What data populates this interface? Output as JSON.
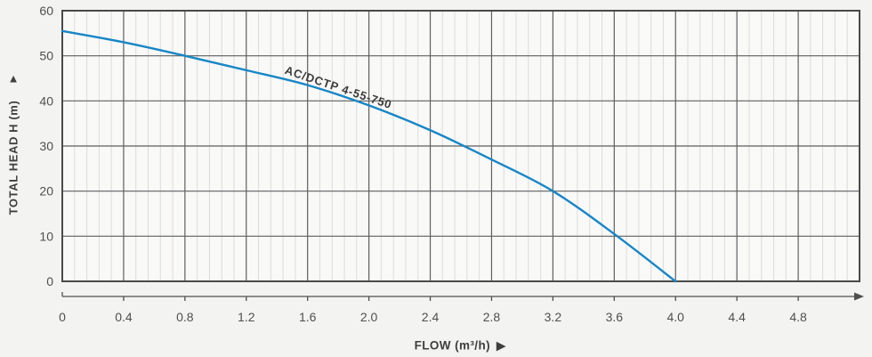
{
  "figure": {
    "y_axis_title": "TOTAL HEAD H (m)",
    "y_axis_arrow": "▲",
    "x_axis_title": "FLOW (m³/h)",
    "x_axis_arrow": "▶"
  },
  "chart_data": {
    "type": "line",
    "title": "",
    "xlabel": "FLOW (m³/h)",
    "ylabel": "TOTAL HEAD H (m)",
    "xlim": [
      0,
      5.2
    ],
    "ylim": [
      0,
      60
    ],
    "x_major_step": 0.4,
    "x_minor_step": 0.08,
    "y_major_step": 10,
    "x_ticks": [
      0,
      0.4,
      0.8,
      1.2,
      1.6,
      2.0,
      2.4,
      2.8,
      3.2,
      3.6,
      4.0,
      4.4,
      4.8
    ],
    "x_tick_labels": [
      "0",
      "0.4",
      "0.8",
      "1.2",
      "1.6",
      "2.0",
      "2.4",
      "2.8",
      "3.2",
      "3.6",
      "4.0",
      "4.4",
      "4.8"
    ],
    "y_ticks": [
      0,
      10,
      20,
      30,
      40,
      50,
      60
    ],
    "y_tick_labels": [
      "0",
      "10",
      "20",
      "30",
      "40",
      "50",
      "60"
    ],
    "grid": {
      "vertical_major": true,
      "vertical_minor": true,
      "horizontal_major": true,
      "horizontal_minor": false
    },
    "legend": "rotated label on curve",
    "series": [
      {
        "name": "AC/DCTP 4-55-750",
        "x": [
          0,
          0.4,
          0.8,
          1.2,
          1.6,
          2.0,
          2.4,
          2.8,
          3.2,
          3.6,
          4.0
        ],
        "y": [
          55.5,
          53.0,
          50.0,
          46.8,
          43.5,
          39.0,
          33.5,
          27.0,
          20.0,
          10.5,
          0.0
        ]
      }
    ]
  },
  "colors": {
    "background": "#f3f3f1",
    "plot_background": "#f9f9f8",
    "plot_border": "#4a4a4a",
    "grid_major": "#5f5f5f",
    "grid_minor": "#dedcda",
    "axis_line": "#4f4f4f",
    "curve": "#1786c6",
    "text": "#4f4f4f"
  }
}
